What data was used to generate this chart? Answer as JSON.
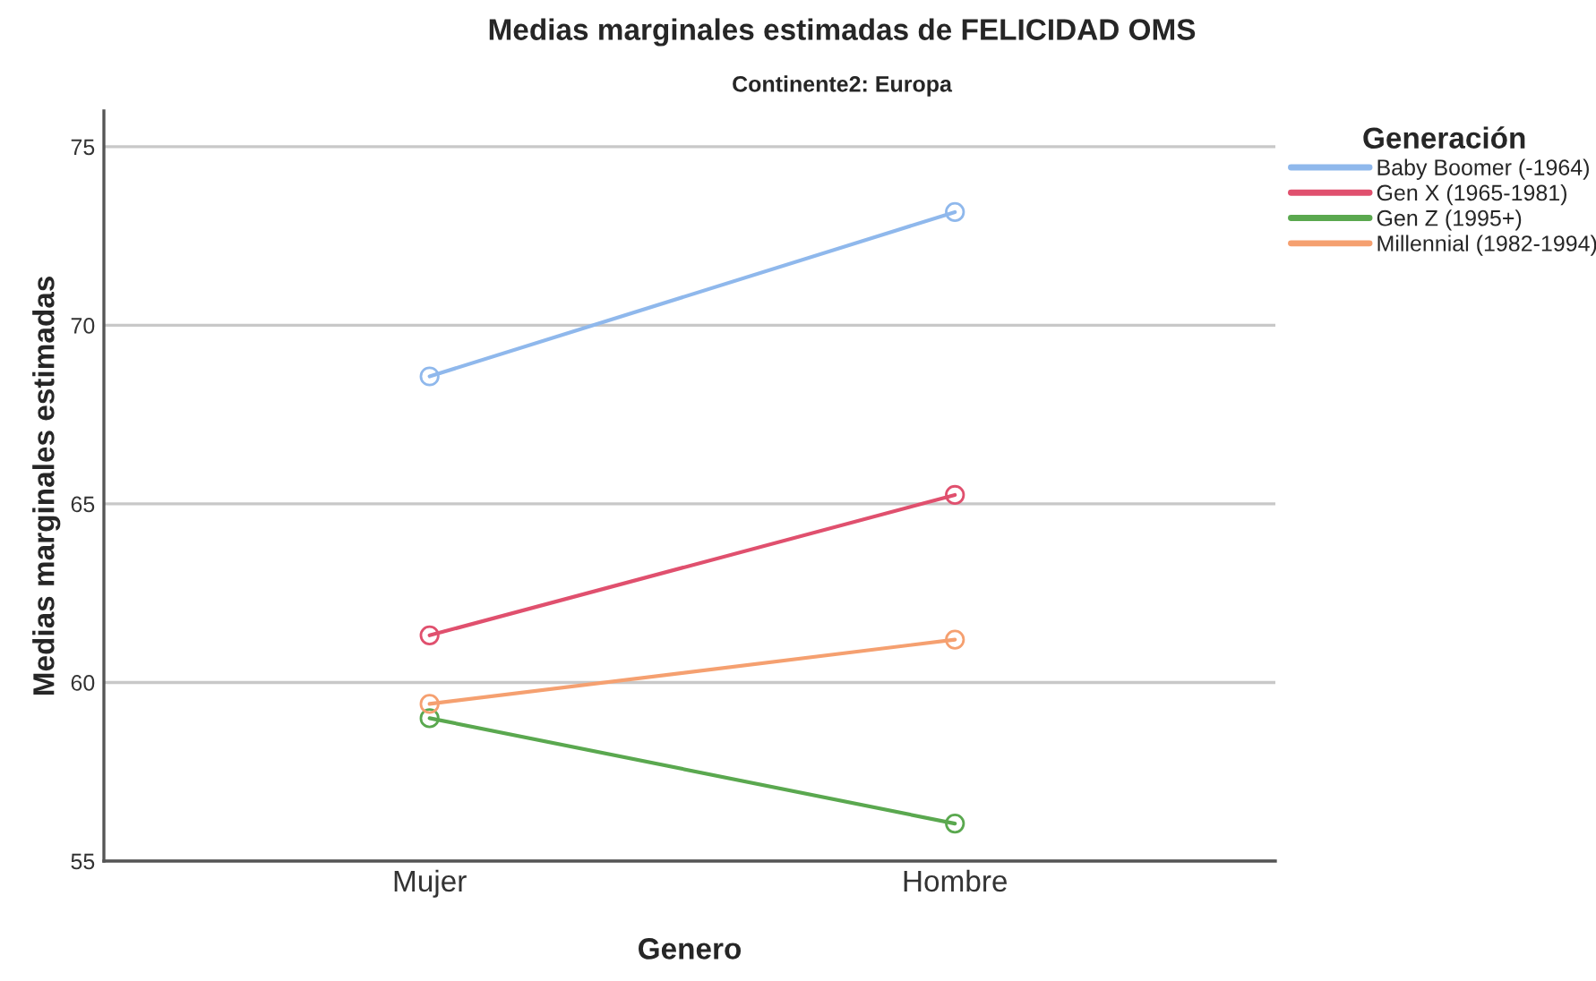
{
  "chart_data": {
    "type": "line",
    "title": "Medias marginales estimadas de FELICIDAD OMS",
    "subtitle": "Continente2: Europa",
    "xlabel": "Genero",
    "ylabel": "Medias marginales estimadas",
    "legend_title": "Generación",
    "categories": [
      "Mujer",
      "Hombre"
    ],
    "series": [
      {
        "name": "Baby Boomer (-1964)",
        "color": "#8fb8ec",
        "values": [
          68.57,
          73.17
        ]
      },
      {
        "name": "Gen X (1965-1981)",
        "color": "#e0506e",
        "values": [
          61.32,
          65.25
        ]
      },
      {
        "name": "Gen Z (1995+)",
        "color": "#5aa84f",
        "values": [
          59.0,
          56.05
        ]
      },
      {
        "name": "Millennial (1982-1994)",
        "color": "#f5a070",
        "values": [
          59.4,
          61.2
        ]
      }
    ],
    "ylim": [
      55,
      76
    ],
    "yticks": [
      55,
      60,
      65,
      70,
      75
    ],
    "grid": "y",
    "legend": "top right",
    "marker": "circle",
    "line_style": "solid"
  }
}
